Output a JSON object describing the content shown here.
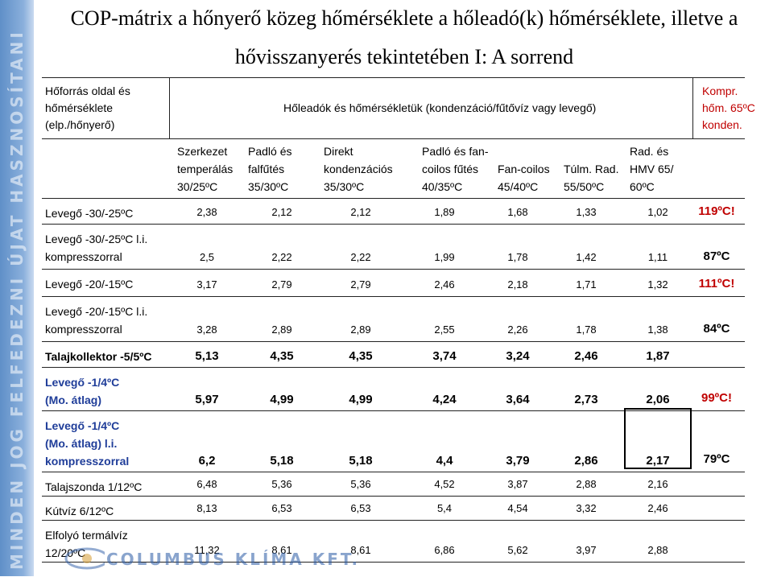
{
  "sidebar_text": "MINDEN JOG FELFEDEZNI ÚJAT  HASZNOSÍTANI",
  "title_line1": "COP-mátrix a hőnyerő közeg hőmérséklete a hőleadó(k) hőmérséklete, illetve a",
  "title_line2": "hővisszanyerés tekintetében I: A sorrend",
  "source_header": {
    "line1": "Hőforrás oldal és",
    "line2": "hőmérséklete",
    "line3": "(elp./hőnyerő)"
  },
  "sink_header": "Hőleadók és hőmérsékletük (kondenzáció/fűtővíz vagy levegő)",
  "compressor_header": {
    "line1": "Kompr.",
    "line2": "hőm. 65ºC",
    "line3": "konden."
  },
  "columns": [
    {
      "l1": "Szerkezet",
      "l2": "temperálás",
      "l3": "30/25ºC"
    },
    {
      "l1": "Padló és",
      "l2": "falfűtés",
      "l3": "35/30ºC"
    },
    {
      "l1": "Direkt",
      "l2": "kondenzációs",
      "l3": "35/30ºC"
    },
    {
      "l1": "Padló és fan-",
      "l2": "coilos fűtés",
      "l3": "40/35ºC"
    },
    {
      "l1": "",
      "l2": "Fan-coilos",
      "l3": "45/40ºC"
    },
    {
      "l1": "",
      "l2": "Túlm. Rad.",
      "l3": "55/50ºC"
    },
    {
      "l1": "Rad. és",
      "l2": "HMV 65/",
      "l3": "60ºC"
    }
  ],
  "rows": [
    {
      "label1": "Levegő -30/-25ºC",
      "label2": "",
      "label3": "",
      "values": [
        "2,38",
        "2,12",
        "2,12",
        "1,89",
        "1,68",
        "1,33",
        "1,02"
      ],
      "result": "119ºC!"
    },
    {
      "label1": "Levegő -30/-25ºC   l.i.",
      "label2": "kompresszorral",
      "label3": "",
      "values": [
        "2,5",
        "2,22",
        "2,22",
        "1,99",
        "1,78",
        "1,42",
        "1,11"
      ],
      "result": "87ºC"
    },
    {
      "label1": "Levegő -20/-15ºC",
      "label2": "",
      "label3": "",
      "values": [
        "3,17",
        "2,79",
        "2,79",
        "2,46",
        "2,18",
        "1,71",
        "1,32"
      ],
      "result": "111ºC!"
    },
    {
      "label1": "Levegő -20/-15ºC   l.i.",
      "label2": "kompresszorral",
      "label3": "",
      "values": [
        "3,28",
        "2,89",
        "2,89",
        "2,55",
        "2,26",
        "1,78",
        "1,38"
      ],
      "result": "84ºC"
    },
    {
      "label1": "Talajkollektor -5/5ºC",
      "label2": "",
      "label3": "",
      "values": [
        "5,13",
        "4,35",
        "4,35",
        "3,74",
        "3,24",
        "2,46",
        "1,87"
      ],
      "result": ""
    },
    {
      "label1": "Levegő -1/4ºC",
      "label2": "(Mo. átlag)",
      "label3": "",
      "values": [
        "5,97",
        "4,99",
        "4,99",
        "4,24",
        "3,64",
        "2,73",
        "2,06"
      ],
      "result": "99ºC!"
    },
    {
      "label1": "Levegő -1/4ºC",
      "label2": "(Mo. átlag)   l.i.",
      "label3": "kompresszorral",
      "values": [
        "6,2",
        "5,18",
        "5,18",
        "4,4",
        "3,79",
        "2,86",
        "2,17"
      ],
      "result": "79ºC"
    },
    {
      "label1": "Talajszonda 1/12ºC",
      "label2": "",
      "label3": "",
      "values": [
        "6,48",
        "5,36",
        "5,36",
        "4,52",
        "3,87",
        "2,88",
        "2,16"
      ],
      "result": ""
    },
    {
      "label1": "Kútvíz 6/12ºC",
      "label2": "",
      "label3": "",
      "values": [
        "8,13",
        "6,53",
        "6,53",
        "5,4",
        "4,54",
        "3,32",
        "2,46"
      ],
      "result": ""
    },
    {
      "label1": "Elfolyó termálvíz",
      "label2": "12/20ºC",
      "label3": "",
      "values": [
        "11,32",
        "8,61",
        "8,61",
        "6,86",
        "5,62",
        "3,97",
        "2,88"
      ],
      "result": ""
    }
  ],
  "logo_text": "COLUMBUS KLÍMA KFT.",
  "colors": {
    "accent_red": "#c00000",
    "logo_blue": "#2a5aa6",
    "sidebar_blue": "#5f8fc8"
  }
}
